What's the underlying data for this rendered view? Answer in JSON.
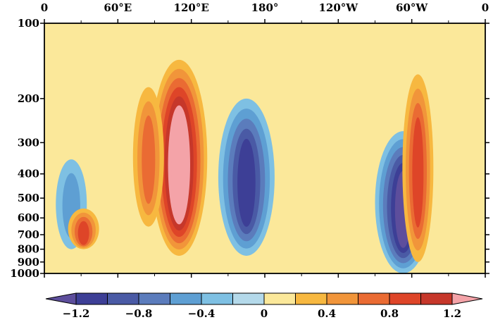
{
  "chart_data": {
    "type": "heatmap",
    "title": "",
    "xlabel": "",
    "ylabel": "",
    "x_ticks": [
      "0",
      "60°E",
      "120°E",
      "180°",
      "120°W",
      "60°W",
      "0"
    ],
    "y_ticks": [
      "100",
      "200",
      "300",
      "400",
      "500",
      "600",
      "700",
      "800",
      "900",
      "1000"
    ],
    "y_tick_values": [
      100,
      200,
      300,
      400,
      500,
      600,
      700,
      800,
      900,
      1000
    ],
    "xlim": [
      0,
      360
    ],
    "ylim": [
      1000,
      100
    ],
    "y_scale": "log",
    "colorbar": {
      "tick_labels": [
        "−1.2",
        "−0.8",
        "−0.4",
        "0",
        "0.4",
        "0.8",
        "1.2"
      ],
      "levels": [
        -1.2,
        -1.0,
        -0.8,
        -0.6,
        -0.4,
        -0.2,
        0,
        0.2,
        0.4,
        0.6,
        0.8,
        1.0,
        1.2
      ],
      "colors": [
        "#5d4e9c",
        "#3d3f96",
        "#4a5aa5",
        "#5b7cbc",
        "#5e9fd3",
        "#7ec0e3",
        "#b4d9ea",
        "#fbe89a",
        "#f7b840",
        "#f1953a",
        "#ea6b33",
        "#de4528",
        "#c6372a",
        "#f4a3a8"
      ]
    },
    "features": [
      {
        "kind": "positive",
        "lon": 110,
        "p_top": 140,
        "p_bottom": 850,
        "peak": 1.3
      },
      {
        "kind": "positive",
        "lon": 85,
        "p_top": 180,
        "p_bottom": 650,
        "peak": 0.6
      },
      {
        "kind": "negative",
        "lon": 165,
        "p_top": 200,
        "p_bottom": 850,
        "peak": -1.1
      },
      {
        "kind": "negative",
        "lon": 293,
        "p_top": 270,
        "p_bottom": 1000,
        "peak": -1.2
      },
      {
        "kind": "positive",
        "lon": 305,
        "p_top": 160,
        "p_bottom": 900,
        "peak": 0.8
      },
      {
        "kind": "negative",
        "lon": 22,
        "p_top": 350,
        "p_bottom": 800,
        "peak": -0.5
      },
      {
        "kind": "positive",
        "lon": 32,
        "p_top": 550,
        "p_bottom": 800,
        "peak": 0.8
      }
    ]
  }
}
